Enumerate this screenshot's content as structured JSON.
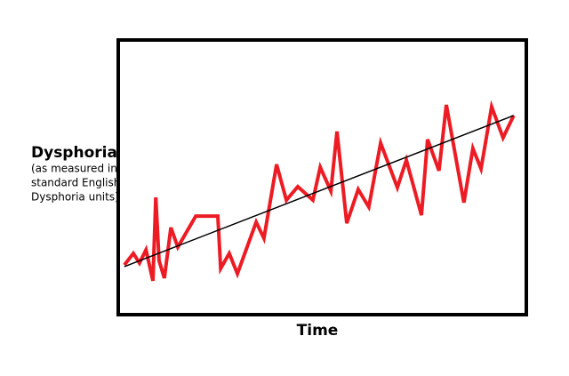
{
  "chart_data": {
    "type": "line",
    "x_label": "Time",
    "y_label": "Dysphoria",
    "y_label_note": [
      "(as measured in",
      "standard English",
      "Dysphoria units)"
    ],
    "xlim": [
      0,
      100
    ],
    "ylim": [
      0,
      100
    ],
    "series": [
      {
        "color": "#ed1c24",
        "x": [
          1.5,
          3.7,
          5.2,
          6.8,
          8.5,
          9.2,
          10.0,
          11.3,
          12.9,
          14.6,
          19.0,
          24.4,
          25.1,
          27.2,
          29.2,
          33.8,
          35.7,
          38.8,
          41.2,
          44.0,
          47.7,
          49.5,
          52.1,
          53.6,
          56.0,
          58.8,
          61.4,
          64.3,
          68.4,
          70.6,
          74.3,
          75.8,
          78.6,
          80.4,
          84.7,
          86.9,
          88.9,
          91.5,
          94.3,
          96.9
        ],
        "values": [
          18.1,
          22.3,
          18.8,
          23.6,
          12.3,
          42.7,
          19.7,
          13.3,
          31.7,
          24.6,
          35.9,
          35.9,
          16.8,
          22.3,
          14.9,
          33.7,
          27.8,
          54.7,
          41.7,
          46.6,
          41.7,
          53.7,
          45.0,
          66.7,
          33.3,
          45.6,
          39.2,
          62.5,
          46.3,
          56.3,
          36.2,
          63.8,
          52.4,
          76.4,
          40.8,
          60.5,
          53.1,
          75.7,
          64.4,
          72.5
        ]
      },
      {
        "color": "#000000",
        "x": [
          1.5,
          96.9
        ],
        "values": [
          17.5,
          72.5
        ]
      }
    ]
  }
}
